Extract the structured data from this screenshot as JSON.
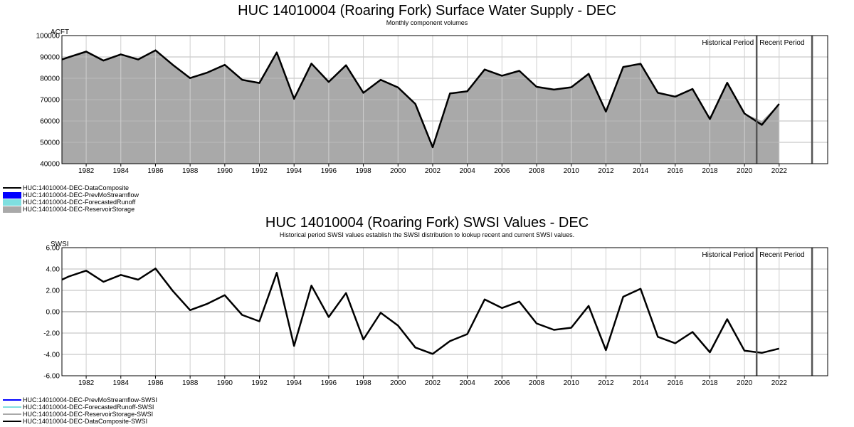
{
  "chart_data": [
    {
      "type": "area",
      "title": "HUC 14010004 (Roaring Fork) Surface Water Supply - DEC",
      "subtitle": "Monthly component volumes",
      "ylabel": "ACFT",
      "xlim": [
        1980.6,
        2024.8
      ],
      "ylim": [
        40000,
        100000
      ],
      "y_ticks": [
        40000,
        50000,
        60000,
        70000,
        80000,
        90000,
        100000
      ],
      "y_tick_labels": [
        "40000",
        "50000",
        "60000",
        "70000",
        "80000",
        "90000",
        "100000"
      ],
      "x_ticks": [
        1982,
        1984,
        1986,
        1988,
        1990,
        1992,
        1994,
        1996,
        1998,
        2000,
        2002,
        2004,
        2006,
        2008,
        2010,
        2012,
        2014,
        2016,
        2018,
        2020,
        2022
      ],
      "grid": true,
      "period_lines": [
        2020.7,
        2023.9
      ],
      "period_labels": [
        "Historical Period",
        "Recent Period"
      ],
      "x": [
        1980.6,
        1981,
        1982,
        1983,
        1984,
        1985,
        1986,
        1987,
        1988,
        1989,
        1990,
        1991,
        1992,
        1993,
        1994,
        1995,
        1996,
        1997,
        1998,
        1999,
        2000,
        2001,
        2002,
        2003,
        2004,
        2005,
        2006,
        2007,
        2008,
        2009,
        2010,
        2011,
        2012,
        2013,
        2014,
        2015,
        2016,
        2017,
        2018,
        2019,
        2020,
        2021,
        2022
      ],
      "series": [
        {
          "name": "HUC:14010004-DEC-ReservoirStorage",
          "color": "#a9a9a9",
          "kind": "area",
          "values": [
            88800,
            89900,
            92500,
            88300,
            91200,
            88800,
            93100,
            86300,
            80100,
            82700,
            86300,
            79300,
            77800,
            92100,
            70400,
            86900,
            78300,
            86100,
            73200,
            79300,
            75700,
            68000,
            47700,
            72900,
            73900,
            84100,
            81200,
            83500,
            76000,
            74700,
            75800,
            82100,
            64400,
            85300,
            86800,
            73200,
            71400,
            75000,
            60900,
            77900,
            63500,
            60000,
            68000
          ]
        },
        {
          "name": "HUC:14010004-DEC-DataComposite",
          "color": "#000000",
          "kind": "line",
          "values": [
            88800,
            89900,
            92500,
            88300,
            91200,
            88800,
            93100,
            86300,
            80100,
            82700,
            86300,
            79300,
            77800,
            92100,
            70400,
            86900,
            78300,
            86100,
            73200,
            79300,
            75700,
            68000,
            47700,
            72900,
            73900,
            84100,
            81200,
            83500,
            76000,
            74700,
            75800,
            82100,
            64400,
            85300,
            86800,
            73200,
            71400,
            75000,
            60900,
            77900,
            63500,
            58200,
            68000
          ]
        }
      ],
      "legend": [
        {
          "label": "HUC:14010004-DEC-DataComposite",
          "color": "#000000",
          "symbol": "line"
        },
        {
          "label": "HUC:14010004-DEC-PrevMoStreamflow",
          "color": "#0000ff",
          "symbol": "box"
        },
        {
          "label": "HUC:14010004-DEC-ForecastedRunoff",
          "color": "#7fdfe0",
          "symbol": "box"
        },
        {
          "label": "HUC:14010004-DEC-ReservoirStorage",
          "color": "#a9a9a9",
          "symbol": "box"
        }
      ]
    },
    {
      "type": "line",
      "title": "HUC 14010004 (Roaring Fork) SWSI Values - DEC",
      "subtitle": "Historical period SWSI values establish the SWSI distribution to lookup recent and current SWSI values.",
      "ylabel": "SWSI",
      "xlim": [
        1980.6,
        2024.8
      ],
      "ylim": [
        -6,
        6
      ],
      "y_ticks": [
        -6,
        -4,
        -2,
        0,
        2,
        4,
        6
      ],
      "y_tick_labels": [
        "-6.00",
        "-4.00",
        "-2.00",
        "0.00",
        "2.00",
        "4.00",
        "6.00"
      ],
      "x_ticks": [
        1982,
        1984,
        1986,
        1988,
        1990,
        1992,
        1994,
        1996,
        1998,
        2000,
        2002,
        2004,
        2006,
        2008,
        2010,
        2012,
        2014,
        2016,
        2018,
        2020,
        2022
      ],
      "grid": true,
      "period_lines": [
        2020.7,
        2023.9
      ],
      "period_labels": [
        "Historical Period",
        "Recent Period"
      ],
      "x": [
        1980.6,
        1981,
        1982,
        1983,
        1984,
        1985,
        1986,
        1987,
        1988,
        1989,
        1990,
        1991,
        1992,
        1993,
        1994,
        1995,
        1996,
        1997,
        1998,
        1999,
        2000,
        2001,
        2002,
        2003,
        2004,
        2005,
        2006,
        2007,
        2008,
        2009,
        2010,
        2011,
        2012,
        2013,
        2014,
        2015,
        2016,
        2017,
        2018,
        2019,
        2020,
        2021,
        2022
      ],
      "series": [
        {
          "name": "HUC:14010004-DEC-DataComposite-SWSI",
          "color": "#000000",
          "kind": "line",
          "values": [
            3.0,
            3.3,
            3.85,
            2.8,
            3.45,
            3.0,
            4.05,
            1.95,
            0.15,
            0.75,
            1.55,
            -0.3,
            -0.9,
            3.65,
            -3.2,
            2.45,
            -0.5,
            1.75,
            -2.6,
            -0.1,
            -1.3,
            -3.35,
            -3.95,
            -2.75,
            -2.1,
            1.15,
            0.35,
            0.95,
            -1.1,
            -1.7,
            -1.5,
            0.55,
            -3.6,
            1.4,
            2.15,
            -2.35,
            -2.95,
            -1.9,
            -3.8,
            -0.7,
            -3.65,
            -3.85,
            -3.45
          ]
        }
      ],
      "legend": [
        {
          "label": "HUC:14010004-DEC-PrevMoStreamflow-SWSI",
          "color": "#0000ff",
          "symbol": "line"
        },
        {
          "label": "HUC:14010004-DEC-ForecastedRunoff-SWSI",
          "color": "#7fdfe0",
          "symbol": "line"
        },
        {
          "label": "HUC:14010004-DEC-ReservoirStorage-SWSI",
          "color": "#a9a9a9",
          "symbol": "line"
        },
        {
          "label": "HUC:14010004-DEC-DataComposite-SWSI",
          "color": "#000000",
          "symbol": "line"
        }
      ]
    }
  ]
}
